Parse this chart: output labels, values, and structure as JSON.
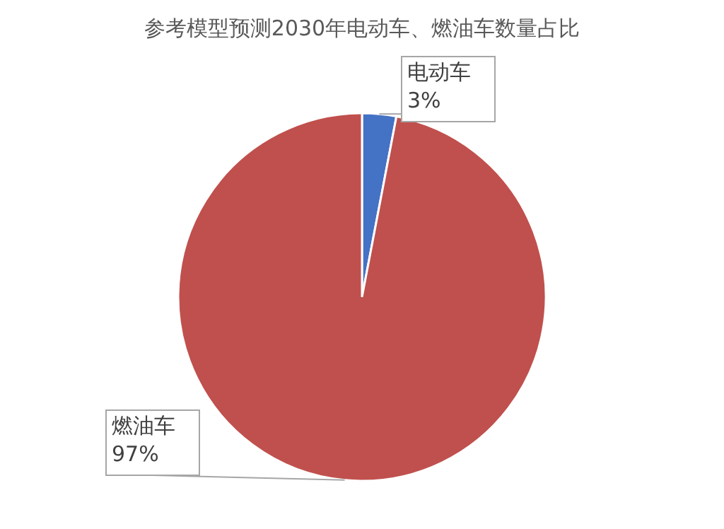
{
  "chart_data": {
    "type": "pie",
    "title": "参考模型预测2030年电动车、燃油车数量占比",
    "categories": [
      "电动车",
      "燃油车"
    ],
    "values": [
      3,
      97
    ],
    "colors": [
      "#4472c4",
      "#c0504d"
    ],
    "value_labels": [
      "3%",
      "97%"
    ]
  }
}
